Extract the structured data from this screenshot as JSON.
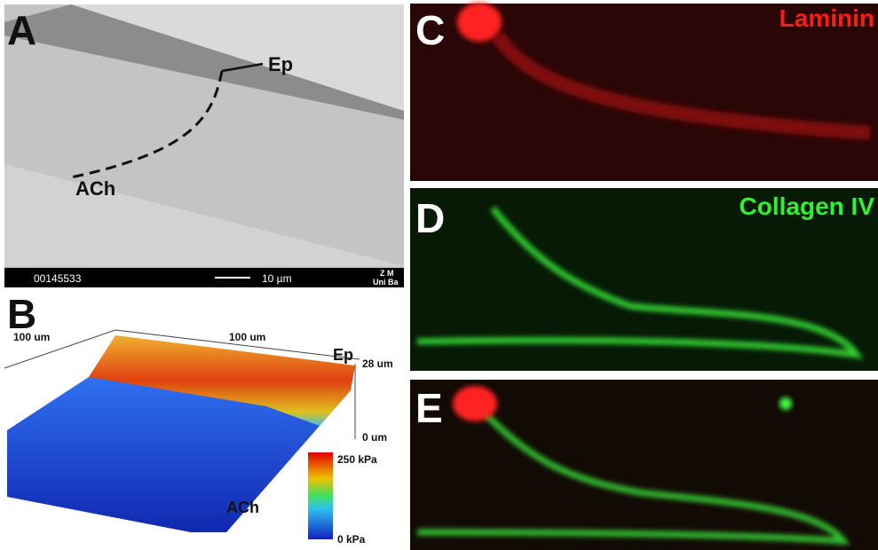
{
  "panels": {
    "A": {
      "label": "A",
      "annotations": [
        "Ep",
        "ACh"
      ],
      "info_bar": {
        "id": "00145533",
        "scale": "10 µm",
        "logo": [
          "Z M",
          "Uni Ba"
        ]
      }
    },
    "B": {
      "label": "B",
      "axis_labels": [
        "100 um",
        "100 um",
        "28 um",
        "0 um"
      ],
      "annotations": [
        "Ep",
        "ACh"
      ],
      "colorbar": [
        "250 kPa",
        "0 kPa"
      ]
    },
    "C": {
      "label": "C",
      "stain": "Laminin"
    },
    "D": {
      "label": "D",
      "stain": "Collagen IV"
    },
    "E": {
      "label": "E"
    }
  }
}
